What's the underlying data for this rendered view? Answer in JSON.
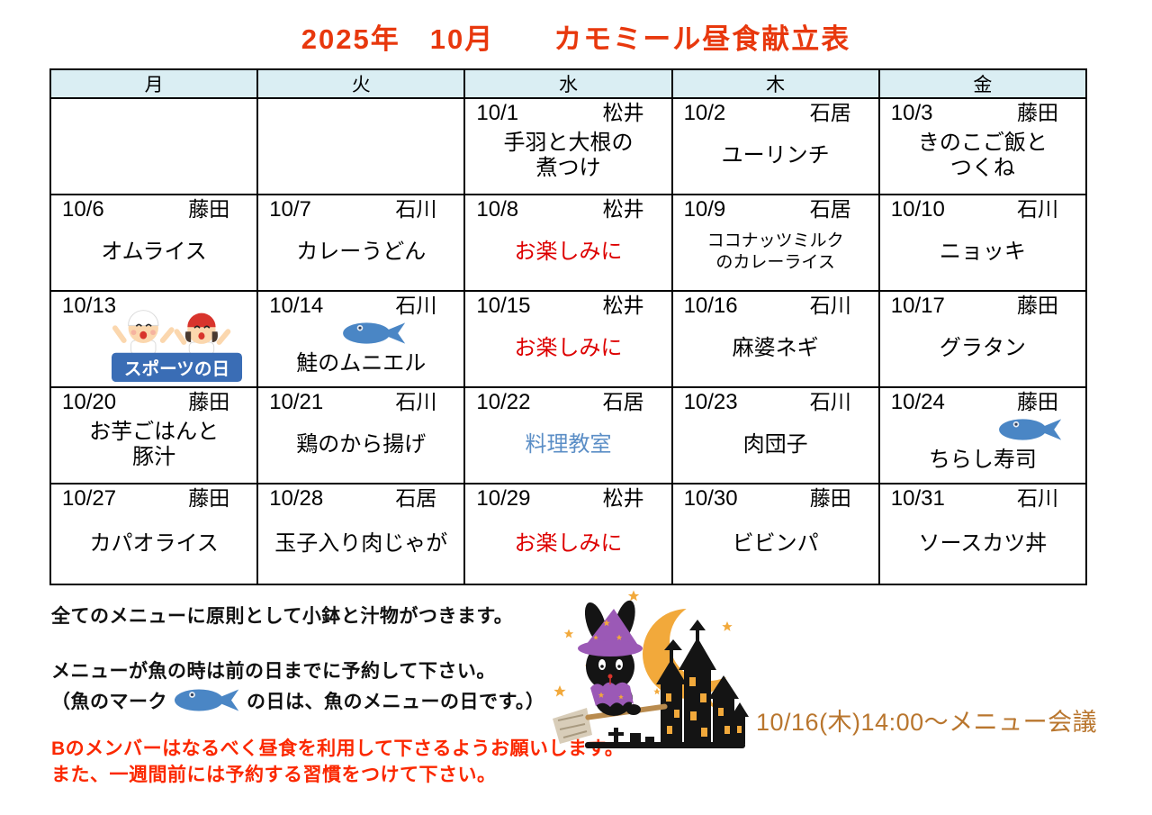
{
  "title": "2025年　10月　　カモミール昼食献立表",
  "table": {
    "headers": [
      "月",
      "火",
      "水",
      "木",
      "金"
    ],
    "weeks": [
      [
        {
          "type": "empty"
        },
        {
          "type": "empty"
        },
        {
          "date": "10/1",
          "staff": "松井",
          "menu": [
            "手羽と大根の",
            "煮つけ"
          ]
        },
        {
          "date": "10/2",
          "staff": "石居",
          "menu": [
            "ユーリンチ"
          ]
        },
        {
          "date": "10/3",
          "staff": "藤田",
          "menu": [
            "きのこご飯と",
            "つくね"
          ]
        }
      ],
      [
        {
          "date": "10/6",
          "staff": "藤田",
          "menu": [
            "オムライス"
          ]
        },
        {
          "date": "10/7",
          "staff": "石川",
          "menu": [
            "カレーうどん"
          ]
        },
        {
          "date": "10/8",
          "staff": "松井",
          "menu": [
            "お楽しみに"
          ],
          "menu_color": "red"
        },
        {
          "date": "10/9",
          "staff": "石居",
          "menu": [
            "ココナッツミルク",
            "のカレーライス"
          ],
          "small": true
        },
        {
          "date": "10/10",
          "staff": "石川",
          "menu": [
            "ニョッキ"
          ]
        }
      ],
      [
        {
          "type": "holiday",
          "date": "10/13",
          "holiday_label": "スポーツの日"
        },
        {
          "date": "10/14",
          "staff": "石川",
          "menu": [
            "鮭のムニエル"
          ],
          "fish": "center"
        },
        {
          "date": "10/15",
          "staff": "松井",
          "menu": [
            "お楽しみに"
          ],
          "menu_color": "red"
        },
        {
          "date": "10/16",
          "staff": "石川",
          "menu": [
            "麻婆ネギ"
          ]
        },
        {
          "date": "10/17",
          "staff": "藤田",
          "menu": [
            "グラタン"
          ]
        }
      ],
      [
        {
          "date": "10/20",
          "staff": "藤田",
          "menu": [
            "お芋ごはんと",
            "豚汁"
          ]
        },
        {
          "date": "10/21",
          "staff": "石川",
          "menu": [
            "鶏のから揚げ"
          ]
        },
        {
          "date": "10/22",
          "staff": "石居",
          "menu": [
            "料理教室"
          ],
          "menu_color": "blue"
        },
        {
          "date": "10/23",
          "staff": "石川",
          "menu": [
            "肉団子"
          ]
        },
        {
          "date": "10/24",
          "staff": "藤田",
          "menu": [
            "ちらし寿司"
          ],
          "fish": "right"
        }
      ],
      [
        {
          "date": "10/27",
          "staff": "藤田",
          "menu": [
            "カパオライス"
          ]
        },
        {
          "date": "10/28",
          "staff": "石居",
          "menu": [
            "玉子入り肉じゃが"
          ]
        },
        {
          "date": "10/29",
          "staff": "松井",
          "menu": [
            "お楽しみに"
          ],
          "menu_color": "red"
        },
        {
          "date": "10/30",
          "staff": "藤田",
          "menu": [
            "ビビンパ"
          ]
        },
        {
          "date": "10/31",
          "staff": "石川",
          "menu": [
            "ソースカツ丼"
          ]
        }
      ]
    ]
  },
  "notes": {
    "line1": "全てのメニューに原則として小鉢と汁物がつきます。",
    "line2": "メニューが魚の時は前の日までに予約して下さい。",
    "line3_prefix": "（魚のマーク",
    "line3_suffix": "の日は、魚のメニューの日です。）",
    "red_line1": "Bのメンバーはなるべく昼食を利用して下さるようお願いします。",
    "red_line2": "また、一週間前には予約する習慣をつけて下さい。"
  },
  "meeting": "10/16(木)14:00～メニュー会議",
  "colors": {
    "title": "#e8380d",
    "header_bg": "#daeef3",
    "empty_bg": "#d9d9d9",
    "menu_red": "#dd0000",
    "menu_blue": "#5b8ec6",
    "notes_red": "#fb2800",
    "meeting": "#b9762e",
    "fish": "#4a86c5",
    "banner": "#3a6db5"
  }
}
